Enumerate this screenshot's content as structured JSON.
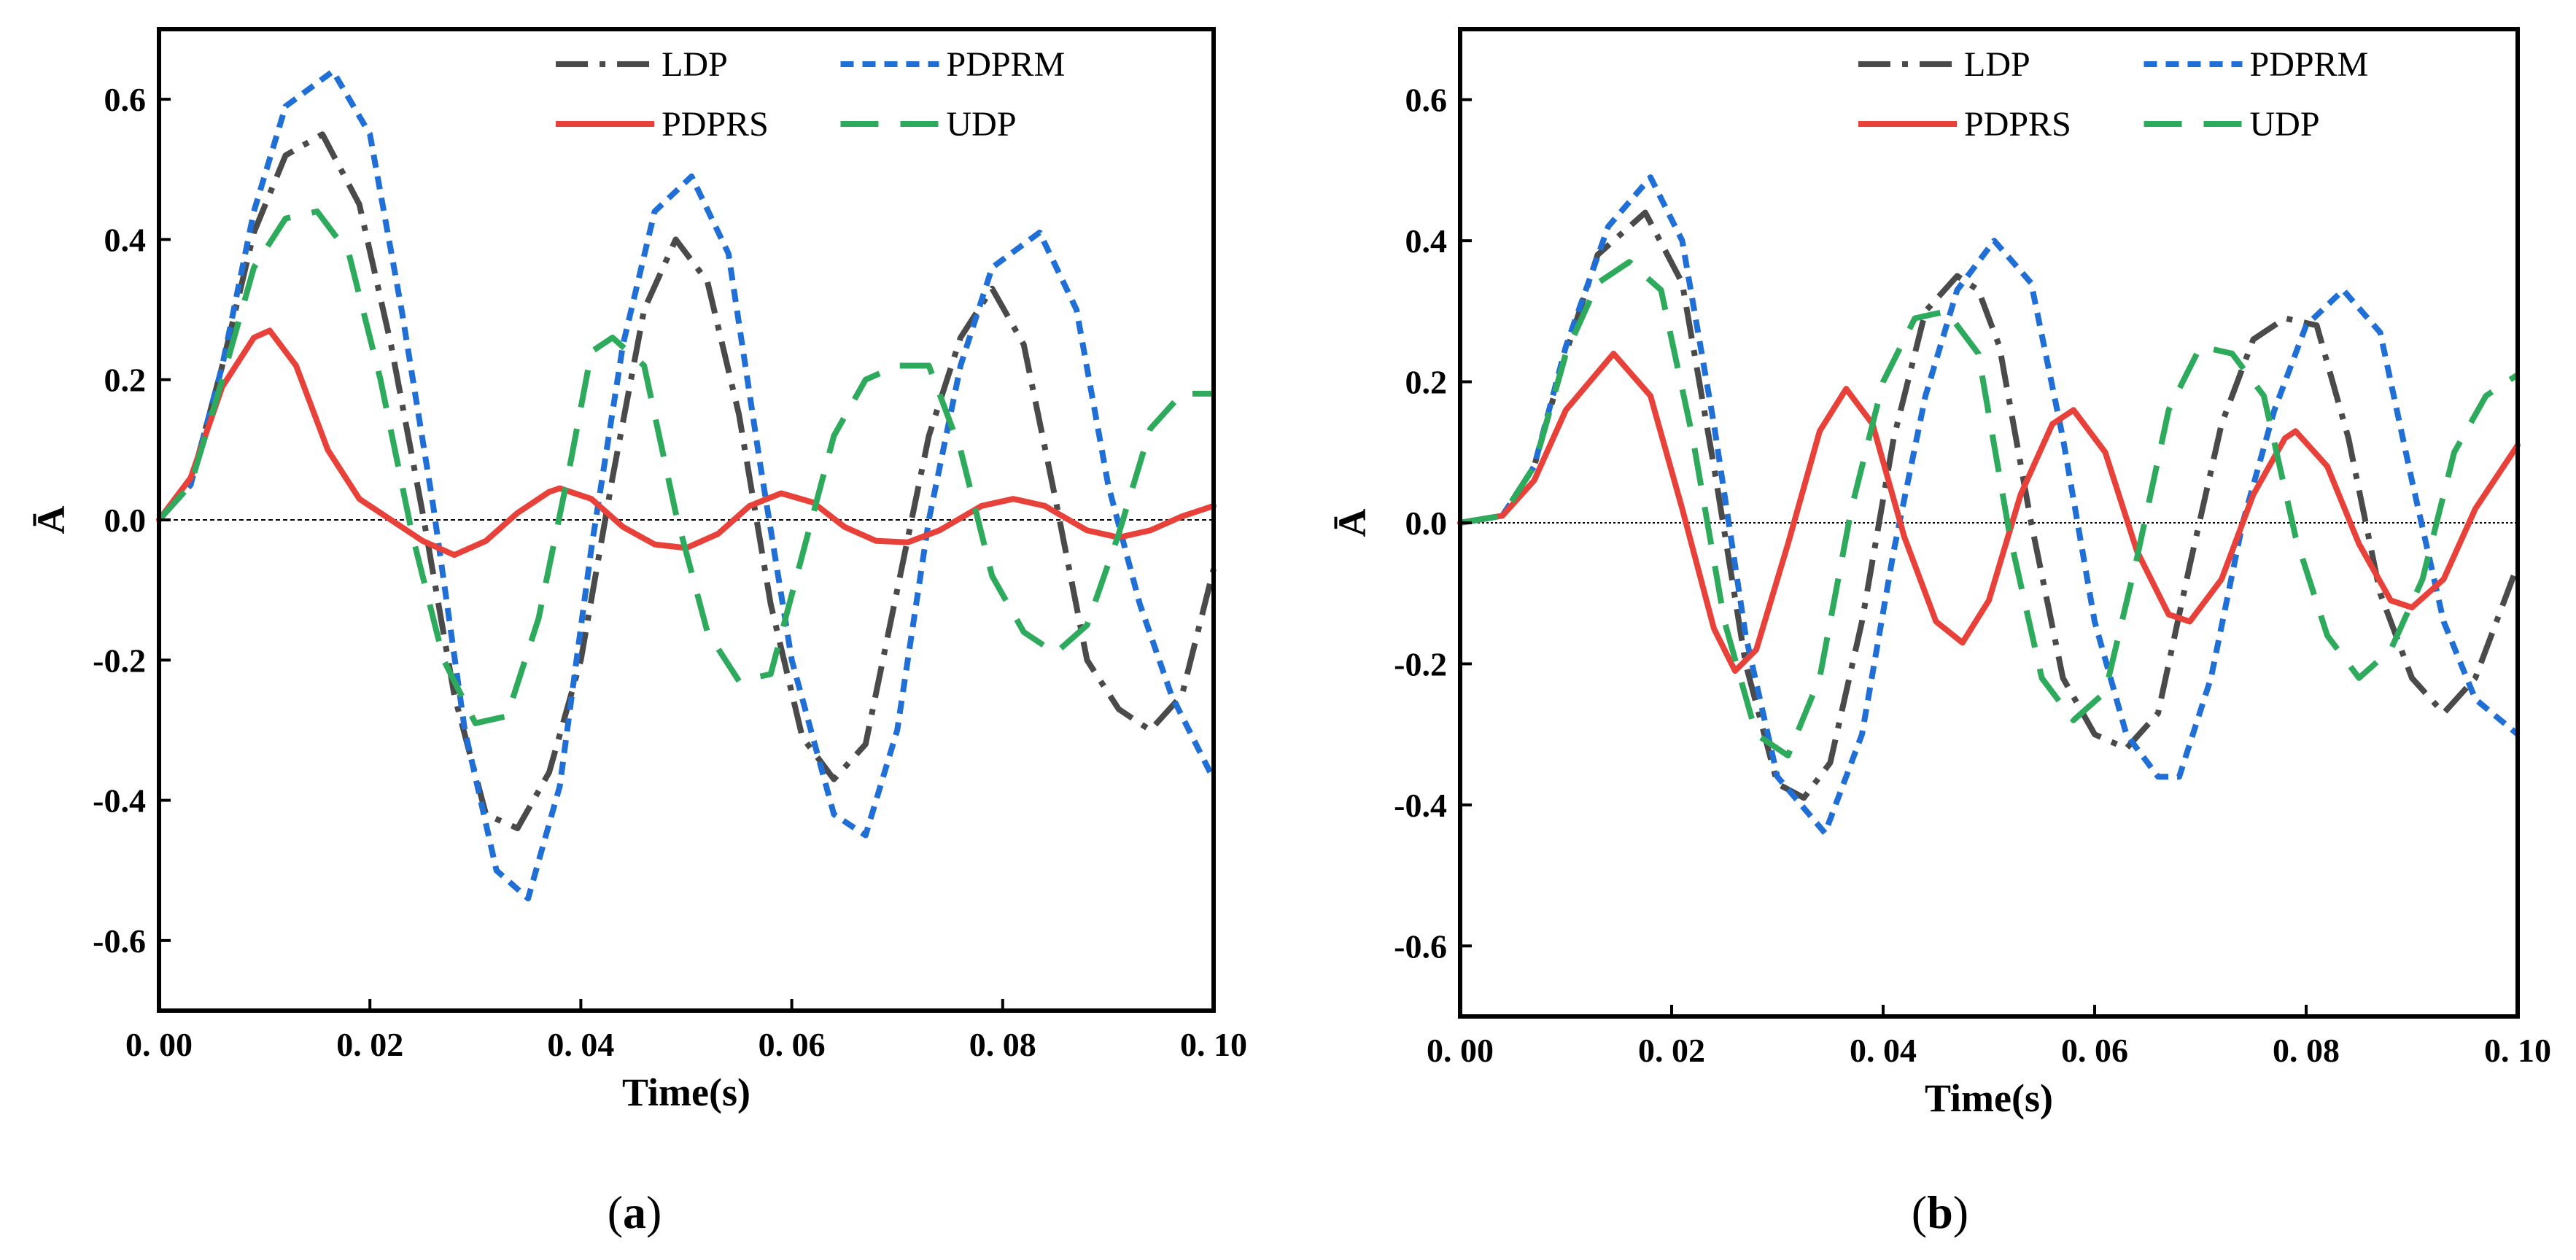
{
  "chart_data": [
    {
      "type": "line",
      "panel_label": "(a)",
      "panel_letter": "a",
      "xlabel": "Time(s)",
      "ylabel": "Ā",
      "xlim": [
        0.0,
        0.1
      ],
      "ylim": [
        -0.7,
        0.7
      ],
      "xticks": [
        0.0,
        0.02,
        0.04,
        0.06,
        0.08,
        0.1
      ],
      "xtick_labels": [
        "0. 00",
        "0. 02",
        "0. 04",
        "0. 06",
        "0. 08",
        "0. 10"
      ],
      "yticks": [
        0.6,
        0.4,
        0.2,
        0.0,
        -0.2,
        -0.4,
        -0.6
      ],
      "ytick_labels": [
        "0.6",
        "0.4",
        "0.2",
        "0.0",
        "-0.2",
        "-0.4",
        "-0.6"
      ],
      "zero_line": true,
      "legend": {
        "placement": "top-right",
        "entries": [
          "LDP",
          "PDPRM",
          "PDPRS",
          "UDP"
        ]
      },
      "series": [
        {
          "name": "LDP",
          "style": "dash-dot",
          "color": "#4a4a4a",
          "x": [
            0.0,
            0.003,
            0.006,
            0.009,
            0.012,
            0.0155,
            0.019,
            0.022,
            0.025,
            0.028,
            0.031,
            0.034,
            0.037,
            0.04,
            0.043,
            0.046,
            0.049,
            0.052,
            0.055,
            0.058,
            0.061,
            0.064,
            0.067,
            0.07,
            0.073,
            0.076,
            0.079,
            0.082,
            0.085,
            0.088,
            0.091,
            0.094,
            0.097,
            0.1
          ],
          "y": [
            0.0,
            0.05,
            0.22,
            0.41,
            0.52,
            0.55,
            0.45,
            0.25,
            0.01,
            -0.25,
            -0.42,
            -0.44,
            -0.36,
            -0.2,
            0.06,
            0.3,
            0.4,
            0.34,
            0.15,
            -0.12,
            -0.31,
            -0.37,
            -0.32,
            -0.1,
            0.12,
            0.26,
            0.33,
            0.25,
            0.03,
            -0.2,
            -0.27,
            -0.3,
            -0.25,
            -0.07
          ]
        },
        {
          "name": "PDPRM",
          "style": "short-dash",
          "color": "#1f6fd6",
          "x": [
            0.0,
            0.003,
            0.006,
            0.009,
            0.012,
            0.0165,
            0.02,
            0.023,
            0.026,
            0.029,
            0.032,
            0.035,
            0.038,
            0.041,
            0.044,
            0.047,
            0.0505,
            0.054,
            0.057,
            0.06,
            0.064,
            0.067,
            0.07,
            0.073,
            0.076,
            0.079,
            0.0835,
            0.087,
            0.09,
            0.093,
            0.096,
            0.1
          ],
          "y": [
            0.0,
            0.05,
            0.22,
            0.44,
            0.59,
            0.64,
            0.55,
            0.3,
            0.02,
            -0.3,
            -0.5,
            -0.54,
            -0.38,
            -0.04,
            0.25,
            0.44,
            0.49,
            0.38,
            0.08,
            -0.2,
            -0.42,
            -0.45,
            -0.3,
            0.0,
            0.22,
            0.36,
            0.41,
            0.3,
            0.05,
            -0.12,
            -0.25,
            -0.37
          ]
        },
        {
          "name": "PDPRS",
          "style": "solid",
          "color": "#e8413a",
          "x": [
            0.0,
            0.003,
            0.006,
            0.009,
            0.0105,
            0.013,
            0.016,
            0.019,
            0.022,
            0.025,
            0.028,
            0.031,
            0.034,
            0.037,
            0.038,
            0.041,
            0.044,
            0.047,
            0.05,
            0.053,
            0.056,
            0.059,
            0.062,
            0.065,
            0.068,
            0.071,
            0.074,
            0.078,
            0.081,
            0.084,
            0.088,
            0.091,
            0.094,
            0.097,
            0.1
          ],
          "y": [
            0.0,
            0.06,
            0.19,
            0.26,
            0.27,
            0.22,
            0.1,
            0.03,
            0.0,
            -0.03,
            -0.05,
            -0.03,
            0.01,
            0.04,
            0.045,
            0.03,
            -0.01,
            -0.035,
            -0.04,
            -0.02,
            0.02,
            0.038,
            0.025,
            -0.01,
            -0.03,
            -0.032,
            -0.015,
            0.02,
            0.03,
            0.02,
            -0.015,
            -0.025,
            -0.015,
            0.005,
            0.02
          ]
        },
        {
          "name": "UDP",
          "style": "long-dash",
          "color": "#2eaa5c",
          "x": [
            0.0,
            0.003,
            0.006,
            0.009,
            0.012,
            0.015,
            0.018,
            0.021,
            0.024,
            0.027,
            0.03,
            0.033,
            0.036,
            0.039,
            0.041,
            0.043,
            0.046,
            0.049,
            0.052,
            0.055,
            0.058,
            0.061,
            0.064,
            0.067,
            0.07,
            0.073,
            0.076,
            0.079,
            0.082,
            0.085,
            0.088,
            0.091,
            0.094,
            0.097,
            0.1
          ],
          "y": [
            0.0,
            0.05,
            0.2,
            0.36,
            0.43,
            0.44,
            0.38,
            0.2,
            -0.02,
            -0.2,
            -0.29,
            -0.28,
            -0.14,
            0.08,
            0.24,
            0.26,
            0.22,
            0.01,
            -0.16,
            -0.23,
            -0.22,
            -0.05,
            0.12,
            0.2,
            0.22,
            0.22,
            0.1,
            -0.08,
            -0.16,
            -0.19,
            -0.15,
            -0.02,
            0.13,
            0.18,
            0.18
          ]
        }
      ]
    },
    {
      "type": "line",
      "panel_label": "(b)",
      "panel_letter": "b",
      "xlabel": "Time(s)",
      "ylabel": "Ā",
      "xlim": [
        0.0,
        0.1
      ],
      "ylim": [
        -0.7,
        0.7
      ],
      "xticks": [
        0.0,
        0.02,
        0.04,
        0.06,
        0.08,
        0.1
      ],
      "xtick_labels": [
        "0. 00",
        "0. 02",
        "0. 04",
        "0. 06",
        "0. 08",
        "0. 10"
      ],
      "yticks": [
        0.6,
        0.4,
        0.2,
        0.0,
        -0.2,
        -0.4,
        -0.6
      ],
      "ytick_labels": [
        "0.6",
        "0.4",
        "0.2",
        "0.0",
        "-0.2",
        "-0.4",
        "-0.6"
      ],
      "zero_line": true,
      "legend": {
        "placement": "top-right",
        "entries": [
          "LDP",
          "PDPRM",
          "PDPRS",
          "UDP"
        ]
      },
      "series": [
        {
          "name": "LDP",
          "style": "dash-dot",
          "color": "#4a4a4a",
          "x": [
            0.0,
            0.004,
            0.007,
            0.01,
            0.013,
            0.0175,
            0.021,
            0.024,
            0.027,
            0.03,
            0.0325,
            0.035,
            0.038,
            0.041,
            0.044,
            0.047,
            0.049,
            0.051,
            0.054,
            0.057,
            0.06,
            0.063,
            0.066,
            0.069,
            0.072,
            0.075,
            0.078,
            0.081,
            0.084,
            0.087,
            0.09,
            0.093,
            0.096,
            0.1
          ],
          "y": [
            0.0,
            0.01,
            0.08,
            0.24,
            0.38,
            0.44,
            0.34,
            0.08,
            -0.2,
            -0.37,
            -0.39,
            -0.34,
            -0.14,
            0.12,
            0.3,
            0.35,
            0.33,
            0.25,
            0.0,
            -0.22,
            -0.3,
            -0.32,
            -0.27,
            -0.06,
            0.14,
            0.26,
            0.29,
            0.28,
            0.12,
            -0.1,
            -0.22,
            -0.27,
            -0.22,
            -0.06
          ]
        },
        {
          "name": "PDPRM",
          "style": "short-dash",
          "color": "#1f6fd6",
          "x": [
            0.0,
            0.004,
            0.007,
            0.01,
            0.014,
            0.018,
            0.021,
            0.024,
            0.027,
            0.03,
            0.0345,
            0.038,
            0.041,
            0.044,
            0.047,
            0.0505,
            0.054,
            0.057,
            0.06,
            0.063,
            0.066,
            0.068,
            0.071,
            0.074,
            0.077,
            0.08,
            0.0835,
            0.087,
            0.09,
            0.093,
            0.096,
            0.1
          ],
          "y": [
            0.0,
            0.01,
            0.08,
            0.25,
            0.42,
            0.49,
            0.4,
            0.14,
            -0.16,
            -0.36,
            -0.44,
            -0.3,
            -0.04,
            0.18,
            0.33,
            0.4,
            0.34,
            0.12,
            -0.14,
            -0.3,
            -0.36,
            -0.36,
            -0.22,
            0.0,
            0.16,
            0.28,
            0.33,
            0.27,
            0.06,
            -0.14,
            -0.25,
            -0.3
          ]
        },
        {
          "name": "PDPRS",
          "style": "solid",
          "color": "#e8413a",
          "x": [
            0.0,
            0.004,
            0.007,
            0.01,
            0.0145,
            0.018,
            0.021,
            0.024,
            0.026,
            0.028,
            0.031,
            0.034,
            0.0365,
            0.039,
            0.042,
            0.045,
            0.0475,
            0.05,
            0.053,
            0.056,
            0.058,
            0.061,
            0.064,
            0.067,
            0.069,
            0.072,
            0.075,
            0.078,
            0.079,
            0.082,
            0.085,
            0.088,
            0.09,
            0.093,
            0.096,
            0.1
          ],
          "y": [
            0.0,
            0.01,
            0.06,
            0.16,
            0.24,
            0.18,
            0.02,
            -0.15,
            -0.21,
            -0.18,
            -0.03,
            0.13,
            0.19,
            0.14,
            -0.02,
            -0.14,
            -0.17,
            -0.11,
            0.04,
            0.14,
            0.16,
            0.1,
            -0.04,
            -0.13,
            -0.14,
            -0.08,
            0.04,
            0.12,
            0.13,
            0.08,
            -0.03,
            -0.11,
            -0.12,
            -0.08,
            0.02,
            0.11
          ]
        },
        {
          "name": "UDP",
          "style": "long-dash",
          "color": "#2eaa5c",
          "x": [
            0.0,
            0.004,
            0.007,
            0.01,
            0.013,
            0.016,
            0.019,
            0.022,
            0.025,
            0.028,
            0.031,
            0.034,
            0.037,
            0.04,
            0.043,
            0.046,
            0.049,
            0.052,
            0.055,
            0.058,
            0.061,
            0.064,
            0.067,
            0.07,
            0.073,
            0.076,
            0.079,
            0.082,
            0.085,
            0.088,
            0.091,
            0.094,
            0.097,
            0.1
          ],
          "y": [
            0.0,
            0.01,
            0.08,
            0.24,
            0.34,
            0.37,
            0.33,
            0.12,
            -0.14,
            -0.3,
            -0.33,
            -0.22,
            0.02,
            0.2,
            0.29,
            0.3,
            0.24,
            -0.02,
            -0.22,
            -0.28,
            -0.24,
            -0.05,
            0.16,
            0.25,
            0.24,
            0.18,
            -0.02,
            -0.16,
            -0.22,
            -0.18,
            -0.08,
            0.1,
            0.18,
            0.21
          ]
        }
      ]
    }
  ]
}
